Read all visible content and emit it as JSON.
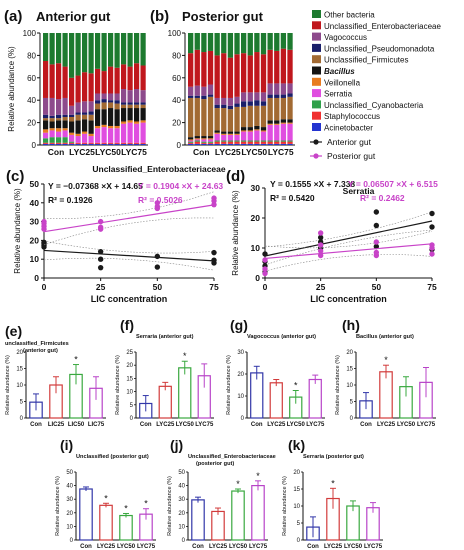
{
  "colors": {
    "Other bacteria": "#1d7a2f",
    "Unclassified_Enterobacteriaceae": "#c0171d",
    "Vagococcus": "#8d4a8c",
    "Unclassified_Pseudomonadota": "#1a1f6a",
    "Unclassified_Firmicutes": "#a26a33",
    "Bacillus": "#141414",
    "Veillonella": "#e87c20",
    "Serratia": "#e04ee0",
    "Unclassified_Cyanobacteria": "#2fa04a",
    "Staphylococcus": "#f03030",
    "Acinetobacter": "#2434d0",
    "anterior": "#1a1a1a",
    "posterior": "#c843c8",
    "con": "#3136a8",
    "lyc25": "#d23b3b",
    "lyc50": "#39a83f",
    "lyc75": "#b843c8"
  },
  "chart_data": [
    {
      "panel": "(a)",
      "type": "bar",
      "title": "Anterior gut",
      "ylabel": "Relative abundance (%)",
      "ylim": [
        0,
        100
      ],
      "yticks": [
        "0",
        "20",
        "40",
        "60",
        "80",
        "100"
      ],
      "categories": [
        "Con",
        "LYC25",
        "LYC50",
        "LYC75"
      ],
      "stacked": true,
      "legend": [
        "Other bacteria",
        "Unclassified_Enterobacteriaceae",
        "Vagococcus",
        "Unclassified_Pseudomonadota",
        "Unclassified_Firmicutes",
        "Bacillus",
        "Veillonella",
        "Serratia",
        "Unclassified_Cyanobacteria",
        "Staphylococcus",
        "Acinetobacter"
      ],
      "samples": [
        {
          "group": "Con",
          "values": [
            25,
            33,
            15,
            3,
            2,
            8,
            3,
            5,
            4,
            1,
            1
          ]
        },
        {
          "group": "Con",
          "values": [
            28,
            30,
            16,
            2,
            3,
            6,
            2,
            6,
            5,
            1,
            1
          ]
        },
        {
          "group": "Con",
          "values": [
            27,
            32,
            14,
            3,
            2,
            7,
            3,
            5,
            5,
            1,
            1
          ]
        },
        {
          "group": "Con",
          "values": [
            30,
            28,
            15,
            2,
            3,
            7,
            2,
            6,
            5,
            1,
            1
          ]
        },
        {
          "group": "LYC25",
          "values": [
            40,
            25,
            8,
            2,
            4,
            10,
            2,
            6,
            1,
            1,
            1
          ]
        },
        {
          "group": "LYC25",
          "values": [
            38,
            24,
            9,
            2,
            5,
            12,
            2,
            6,
            0,
            1,
            1
          ]
        },
        {
          "group": "LYC25",
          "values": [
            35,
            26,
            10,
            2,
            4,
            11,
            2,
            8,
            0,
            1,
            1
          ]
        },
        {
          "group": "LYC25",
          "values": [
            36,
            25,
            9,
            3,
            5,
            12,
            2,
            6,
            0,
            1,
            1
          ]
        },
        {
          "group": "LYC50",
          "values": [
            32,
            22,
            6,
            3,
            5,
            15,
            2,
            13,
            0,
            1,
            1
          ]
        },
        {
          "group": "LYC50",
          "values": [
            34,
            20,
            5,
            3,
            6,
            14,
            2,
            14,
            0,
            1,
            1
          ]
        },
        {
          "group": "LYC50",
          "values": [
            30,
            24,
            6,
            2,
            5,
            16,
            2,
            13,
            0,
            1,
            1
          ]
        },
        {
          "group": "LYC50",
          "values": [
            31,
            23,
            6,
            3,
            5,
            15,
            2,
            13,
            0,
            1,
            1
          ]
        },
        {
          "group": "LYC75",
          "values": [
            28,
            22,
            12,
            2,
            3,
            12,
            2,
            17,
            0,
            1,
            1
          ]
        },
        {
          "group": "LYC75",
          "values": [
            30,
            21,
            11,
            2,
            3,
            11,
            2,
            18,
            0,
            1,
            1
          ]
        },
        {
          "group": "LYC75",
          "values": [
            27,
            23,
            12,
            2,
            3,
            12,
            2,
            17,
            0,
            1,
            1
          ]
        },
        {
          "group": "LYC75",
          "values": [
            29,
            22,
            11,
            2,
            3,
            11,
            2,
            18,
            0,
            1,
            1
          ]
        }
      ]
    },
    {
      "panel": "(b)",
      "type": "bar",
      "title": "Posterior gut",
      "ylabel": "",
      "ylim": [
        0,
        100
      ],
      "yticks": [
        "0",
        "20",
        "40",
        "60",
        "80",
        "100"
      ],
      "categories": [
        "Con",
        "LYC25",
        "LYC50",
        "LYC75"
      ],
      "stacked": true,
      "samples": [
        {
          "group": "Con",
          "values": [
            18,
            30,
            8,
            2,
            35,
            2,
            1,
            1,
            1,
            1,
            1
          ]
        },
        {
          "group": "Con",
          "values": [
            15,
            32,
            9,
            2,
            34,
            2,
            1,
            1,
            1,
            2,
            1
          ]
        },
        {
          "group": "Con",
          "values": [
            17,
            31,
            8,
            3,
            33,
            2,
            1,
            2,
            1,
            1,
            1
          ]
        },
        {
          "group": "Con",
          "values": [
            16,
            30,
            9,
            2,
            35,
            2,
            1,
            2,
            1,
            1,
            1
          ]
        },
        {
          "group": "LYC25",
          "values": [
            20,
            38,
            6,
            3,
            20,
            2,
            1,
            6,
            1,
            2,
            1
          ]
        },
        {
          "group": "LYC25",
          "values": [
            18,
            40,
            6,
            3,
            21,
            2,
            1,
            5,
            1,
            2,
            1
          ]
        },
        {
          "group": "LYC25",
          "values": [
            22,
            36,
            7,
            3,
            20,
            2,
            1,
            5,
            1,
            2,
            1
          ]
        },
        {
          "group": "LYC25",
          "values": [
            19,
            38,
            6,
            3,
            22,
            2,
            1,
            5,
            1,
            2,
            1
          ]
        },
        {
          "group": "LYC50",
          "values": [
            18,
            35,
            8,
            5,
            18,
            3,
            1,
            8,
            1,
            2,
            1
          ]
        },
        {
          "group": "LYC50",
          "values": [
            20,
            33,
            8,
            4,
            19,
            3,
            1,
            8,
            1,
            2,
            1
          ]
        },
        {
          "group": "LYC50",
          "values": [
            17,
            36,
            7,
            5,
            18,
            3,
            1,
            9,
            1,
            2,
            1
          ]
        },
        {
          "group": "LYC50",
          "values": [
            19,
            34,
            8,
            4,
            19,
            3,
            1,
            8,
            1,
            2,
            1
          ]
        },
        {
          "group": "LYC75",
          "values": [
            15,
            30,
            10,
            3,
            20,
            3,
            1,
            14,
            1,
            2,
            1
          ]
        },
        {
          "group": "LYC75",
          "values": [
            16,
            29,
            10,
            3,
            20,
            3,
            1,
            14,
            1,
            2,
            1
          ]
        },
        {
          "group": "LYC75",
          "values": [
            14,
            31,
            10,
            3,
            19,
            3,
            1,
            15,
            1,
            2,
            1
          ]
        },
        {
          "group": "LYC75",
          "values": [
            15,
            30,
            9,
            3,
            20,
            3,
            1,
            15,
            1,
            2,
            1
          ]
        }
      ]
    },
    {
      "panel": "(c)",
      "type": "scatter",
      "title": "Unclassified_Enterobacteriaceae",
      "xlabel": "LIC concentration",
      "ylabel": "Relative abundance (%)",
      "xlim": [
        0,
        75
      ],
      "ylim": [
        0,
        50
      ],
      "xticks": [
        "0",
        "25",
        "50",
        "75"
      ],
      "yticks": [
        "0",
        "10",
        "20",
        "30",
        "40",
        "50"
      ],
      "legend": [
        "Anterior gut",
        "Posterior gut"
      ],
      "equations": {
        "anterior": "Y = −0.07368 ×X + 14.65",
        "posterior": "Y = 0.1904 ×X + 24.63",
        "r2_anterior": "R² = 0.1926",
        "r2_posterior": "R² = 0.5026"
      },
      "series": [
        {
          "name": "Anterior gut",
          "slope": -0.07368,
          "intercept": 14.65,
          "points": [
            [
              0,
              16.5
            ],
            [
              0,
              17.5
            ],
            [
              0,
              18.5
            ],
            [
              0,
              19
            ],
            [
              25,
              14
            ],
            [
              25,
              10
            ],
            [
              25,
              5.5
            ],
            [
              50,
              5.8
            ],
            [
              50,
              11.5
            ],
            [
              75,
              8
            ],
            [
              75,
              9.5
            ],
            [
              75,
              13.5
            ]
          ]
        },
        {
          "name": "Posterior gut",
          "slope": 0.1904,
          "intercept": 24.63,
          "points": [
            [
              0,
              26
            ],
            [
              0,
              27.5
            ],
            [
              0,
              29
            ],
            [
              0,
              30
            ],
            [
              25,
              26
            ],
            [
              25,
              27
            ],
            [
              25,
              30
            ],
            [
              50,
              37
            ],
            [
              50,
              38
            ],
            [
              50,
              40
            ],
            [
              75,
              39
            ],
            [
              75,
              41
            ],
            [
              75,
              42.5
            ]
          ]
        }
      ]
    },
    {
      "panel": "(d)",
      "type": "scatter",
      "title": "Serratia",
      "xlabel": "LIC concentration",
      "ylabel": "Relative abundance (%)",
      "xlim": [
        0,
        75
      ],
      "ylim": [
        0,
        30
      ],
      "xticks": [
        "0",
        "25",
        "50",
        "75"
      ],
      "yticks": [
        "0",
        "10",
        "20",
        "30"
      ],
      "equations": {
        "anterior": "Y = 0.1555 ×X + 7.338",
        "posterior": "Y = 0.06507 ×X + 6.515",
        "r2_anterior": "R² = 0.5420",
        "r2_posterior": "R² = 0.2462"
      },
      "series": [
        {
          "name": "Anterior gut",
          "slope": 0.1555,
          "intercept": 7.338,
          "points": [
            [
              0,
              2
            ],
            [
              0,
              4
            ],
            [
              0,
              5.5
            ],
            [
              0,
              8
            ],
            [
              25,
              10
            ],
            [
              25,
              12
            ],
            [
              25,
              13.5
            ],
            [
              50,
              10.5
            ],
            [
              50,
              17.5
            ],
            [
              50,
              22
            ],
            [
              75,
              9.5
            ],
            [
              75,
              17
            ],
            [
              75,
              21.5
            ]
          ]
        },
        {
          "name": "Posterior gut",
          "slope": 0.06507,
          "intercept": 6.515,
          "points": [
            [
              0,
              1.5
            ],
            [
              0,
              3
            ],
            [
              0,
              6
            ],
            [
              25,
              7.5
            ],
            [
              25,
              9
            ],
            [
              25,
              11
            ],
            [
              25,
              15
            ],
            [
              50,
              7.5
            ],
            [
              50,
              8.5
            ],
            [
              50,
              12
            ],
            [
              75,
              8
            ],
            [
              75,
              10
            ],
            [
              75,
              11
            ]
          ]
        }
      ]
    },
    {
      "panel": "(e)",
      "type": "bar",
      "title": "unclassified_Firmicutes",
      "subtitle": "(anterior gut)",
      "ylabel": "Relative abundance (%)",
      "categories": [
        "Con",
        "LIC25",
        "LIC50",
        "LIC75"
      ],
      "ylim": [
        0,
        20
      ],
      "yticks": [
        "0",
        "5",
        "10",
        "15",
        "20"
      ],
      "values": [
        4.8,
        10,
        13.2,
        9
      ],
      "errors": [
        2.5,
        2.5,
        3,
        3.5
      ],
      "significant": [
        false,
        false,
        true,
        false
      ]
    },
    {
      "panel": "(f)",
      "type": "bar",
      "title": "Serraria (anterior gut)",
      "ylabel": "Relative abundance (%)",
      "categories": [
        "Con",
        "LYC25",
        "LYC50",
        "LYC75"
      ],
      "ylim": [
        0,
        25
      ],
      "yticks": [
        "0",
        "5",
        "10",
        "15",
        "20",
        "25"
      ],
      "values": [
        5.5,
        12,
        19,
        16
      ],
      "errors": [
        3,
        1.5,
        2.5,
        4.5
      ],
      "significant": [
        false,
        false,
        true,
        false
      ]
    },
    {
      "panel": "(g)",
      "type": "bar",
      "title": "Vagococcus (anterior gut)",
      "ylabel": "Relative abundance (%)",
      "categories": [
        "Con",
        "LYC25",
        "LYC50",
        "LYC75"
      ],
      "ylim": [
        0,
        30
      ],
      "yticks": [
        "0",
        "10",
        "20",
        "30"
      ],
      "values": [
        20.5,
        16,
        9.5,
        17.5
      ],
      "errors": [
        3,
        1.5,
        3,
        2
      ],
      "significant": [
        false,
        false,
        true,
        false
      ]
    },
    {
      "panel": "(h)",
      "type": "bar",
      "title": "Bacillus (anterior gut)",
      "ylabel": "Relative abundance (%)",
      "categories": [
        "Con",
        "LYC25",
        "LYC50",
        "LYC75"
      ],
      "ylim": [
        0,
        20
      ],
      "yticks": [
        "0",
        "5",
        "10",
        "15",
        "20"
      ],
      "values": [
        5.2,
        14,
        9.5,
        10.8
      ],
      "errors": [
        2.5,
        2,
        3,
        4.5
      ],
      "significant": [
        false,
        true,
        false,
        false
      ]
    },
    {
      "panel": "(i)",
      "type": "bar",
      "title": "Unclassified (posterior gut)",
      "ylabel": "Relative abundance (%)",
      "categories": [
        "Con",
        "LYC25",
        "LYC50",
        "LYC75"
      ],
      "ylim": [
        0,
        50
      ],
      "yticks": [
        "0",
        "10",
        "20",
        "30",
        "40",
        "50"
      ],
      "values": [
        37.5,
        25.5,
        18,
        19
      ],
      "errors": [
        1.5,
        1.5,
        1.5,
        4
      ],
      "significant": [
        false,
        true,
        true,
        true
      ]
    },
    {
      "panel": "(j)",
      "type": "bar",
      "title": "Unclassified_Enterobacteriaceae",
      "subtitle": "(posterior gut)",
      "ylabel": "Relative abundance (%)",
      "categories": [
        "Con",
        "LYC25",
        "LYC50",
        "LYC75"
      ],
      "ylim": [
        0,
        50
      ],
      "yticks": [
        "0",
        "10",
        "20",
        "30",
        "40",
        "50"
      ],
      "values": [
        29.5,
        21,
        36,
        40
      ],
      "errors": [
        2,
        2.5,
        1.5,
        3.5
      ],
      "significant": [
        false,
        false,
        true,
        true
      ]
    },
    {
      "panel": "(k)",
      "type": "bar",
      "title": "Serraria (posterior gut)",
      "ylabel": "Relative abundance (%)",
      "categories": [
        "Con",
        "LYC25",
        "LYC50",
        "LYC75"
      ],
      "ylim": [
        0,
        20
      ],
      "yticks": [
        "0",
        "5",
        "10",
        "15",
        "20"
      ],
      "values": [
        3.8,
        12.2,
        10,
        9.5
      ],
      "errors": [
        3,
        3,
        1.5,
        1.5
      ],
      "significant": [
        false,
        true,
        false,
        false
      ]
    }
  ]
}
